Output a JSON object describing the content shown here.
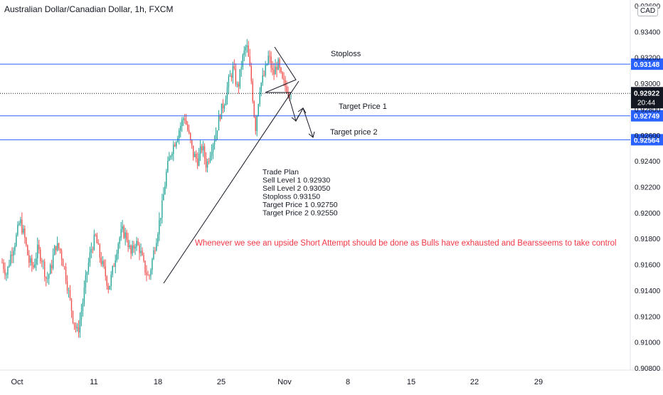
{
  "header": {
    "title": "Australian Dollar/Canadian Dollar, 1h, FXCM"
  },
  "currency": "CAD",
  "colors": {
    "up": "#26a69a",
    "down": "#ef5350",
    "level": "#2962ff",
    "annotation_red": "#f23645",
    "text": "#131722"
  },
  "chart_data": {
    "type": "candlestick",
    "title": "Australian Dollar/Canadian Dollar, 1h, FXCM",
    "xlabel": "",
    "ylabel": "",
    "x_ticks": [
      "Oct",
      "11",
      "18",
      "25",
      "Nov",
      "8",
      "15",
      "22",
      "29"
    ],
    "y_ticks": [
      "0.93600",
      "0.93400",
      "0.93200",
      "0.93000",
      "0.92800",
      "0.92600",
      "0.92400",
      "0.92200",
      "0.92000",
      "0.91800",
      "0.91600",
      "0.91400",
      "0.91200",
      "0.91000",
      "0.90800"
    ],
    "ylim": [
      0.908,
      0.936
    ],
    "price_path": [
      [
        0.9165,
        0.9158
      ],
      [
        0.9155,
        0.915
      ],
      [
        0.9175,
        0.9162
      ],
      [
        0.9185,
        0.9172
      ],
      [
        0.92,
        0.9188
      ],
      [
        0.9185,
        0.9178
      ],
      [
        0.9165,
        0.916
      ],
      [
        0.916,
        0.9156
      ],
      [
        0.9175,
        0.9168
      ],
      [
        0.9168,
        0.916
      ],
      [
        0.915,
        0.9145
      ],
      [
        0.916,
        0.9155
      ],
      [
        0.918,
        0.917
      ],
      [
        0.9175,
        0.9168
      ],
      [
        0.916,
        0.9155
      ],
      [
        0.914,
        0.9135
      ],
      [
        0.912,
        0.9115
      ],
      [
        0.9108,
        0.9105
      ],
      [
        0.913,
        0.9125
      ],
      [
        0.9155,
        0.915
      ],
      [
        0.9175,
        0.9168
      ],
      [
        0.9185,
        0.9178
      ],
      [
        0.917,
        0.9162
      ],
      [
        0.916,
        0.915
      ],
      [
        0.9145,
        0.9138
      ],
      [
        0.916,
        0.9155
      ],
      [
        0.918,
        0.9172
      ],
      [
        0.919,
        0.9182
      ],
      [
        0.9185,
        0.9178
      ],
      [
        0.917,
        0.9165
      ],
      [
        0.918,
        0.9175
      ],
      [
        0.9175,
        0.9168
      ],
      [
        0.916,
        0.9155
      ],
      [
        0.915,
        0.9148
      ],
      [
        0.917,
        0.9165
      ],
      [
        0.919,
        0.9182
      ],
      [
        0.921,
        0.92
      ],
      [
        0.9235,
        0.9228
      ],
      [
        0.925,
        0.9245
      ],
      [
        0.926,
        0.9252
      ],
      [
        0.927,
        0.9262
      ],
      [
        0.928,
        0.927
      ],
      [
        0.9265,
        0.9255
      ],
      [
        0.925,
        0.924
      ],
      [
        0.9245,
        0.9236
      ],
      [
        0.9255,
        0.9248
      ],
      [
        0.924,
        0.9232
      ],
      [
        0.9255,
        0.9245
      ],
      [
        0.9265,
        0.9255
      ],
      [
        0.928,
        0.9272
      ],
      [
        0.929,
        0.9282
      ],
      [
        0.9305,
        0.9298
      ],
      [
        0.9315,
        0.9308
      ],
      [
        0.93,
        0.929
      ],
      [
        0.932,
        0.9315
      ],
      [
        0.9335,
        0.9325
      ],
      [
        0.931,
        0.93
      ],
      [
        0.927,
        0.926
      ],
      [
        0.93,
        0.9295
      ],
      [
        0.931,
        0.9303
      ],
      [
        0.9325,
        0.9318
      ],
      [
        0.931,
        0.9302
      ],
      [
        0.932,
        0.9312
      ],
      [
        0.9305,
        0.9298
      ],
      [
        0.93,
        0.9293
      ],
      [
        0.9295,
        0.9292
      ]
    ],
    "levels": [
      {
        "price": 0.93148,
        "label": "0.93148"
      },
      {
        "price": 0.92749,
        "label": "0.92749"
      },
      {
        "price": 0.92564,
        "label": "0.92564"
      }
    ],
    "current_price": {
      "label": "0.92922",
      "countdown": "20:44",
      "price": 0.92922
    },
    "annotations": {
      "stoploss": "Stoploss",
      "target1": "Target Price 1",
      "target2": "Target price 2",
      "trade_plan": [
        "Trade Plan",
        "Sell Level 1 0.92930",
        "Sell Level 2 0.93050",
        "Stoploss 0.93150",
        "Target Price 1 0.92750",
        "Target Price 2 0.92550"
      ],
      "note": "Whenever we see an upside Short Attempt should be done as Bulls have exhausted and Bearsseems to take control"
    }
  }
}
